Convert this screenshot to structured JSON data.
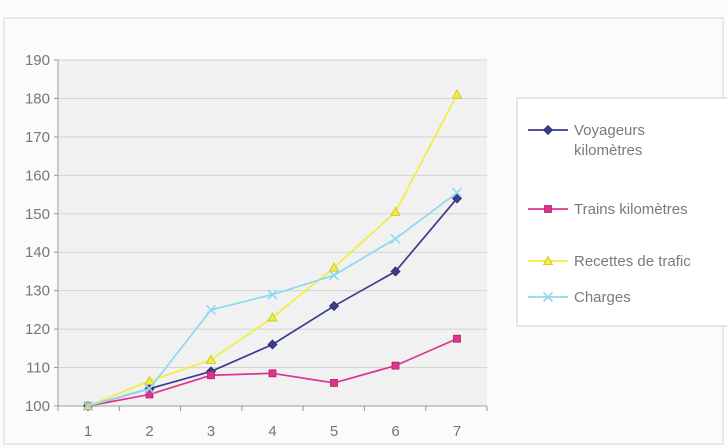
{
  "chart_data": {
    "type": "line",
    "categories": [
      "1",
      "2",
      "3",
      "4",
      "5",
      "6",
      "7"
    ],
    "ylim": [
      100,
      190
    ],
    "yticks": [
      100,
      110,
      120,
      130,
      140,
      150,
      160,
      170,
      180,
      190
    ],
    "grid": "horizontal",
    "legend_position": "right",
    "series": [
      {
        "name": "Voyageurs kilomètres",
        "legend_lines": [
          "Voyageurs",
          "kilomètres"
        ],
        "color": "#3b3b8f",
        "marker": "diamond",
        "values": [
          100,
          104.5,
          109,
          116,
          126,
          135,
          154
        ]
      },
      {
        "name": "Trains kilomètres",
        "legend_lines": [
          "Trains kilomètres"
        ],
        "color": "#e0338f",
        "marker": "square",
        "values": [
          100,
          103,
          108,
          108.5,
          106,
          110.5,
          117.5
        ]
      },
      {
        "name": "Recettes de trafic",
        "legend_lines": [
          "Recettes de trafic"
        ],
        "color": "#f2ee3c",
        "marker": "triangle",
        "values": [
          100,
          106.5,
          112,
          123,
          136,
          150.5,
          181
        ]
      },
      {
        "name": "Charges",
        "legend_lines": [
          "Charges"
        ],
        "color": "#8fd8ee",
        "marker": "x",
        "values": [
          100,
          104.5,
          125,
          129,
          134,
          143.5,
          155.5
        ]
      }
    ]
  }
}
